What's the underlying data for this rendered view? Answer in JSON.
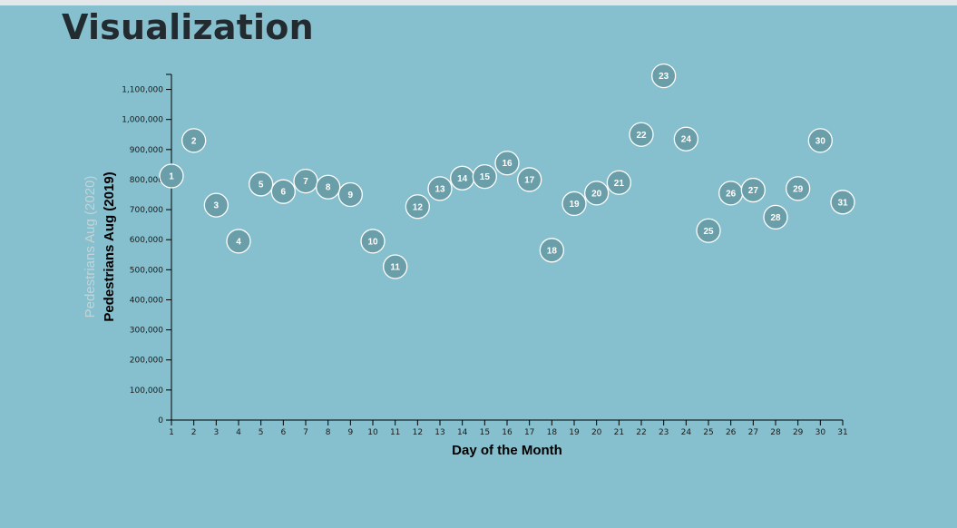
{
  "page": {
    "title": "Visualization"
  },
  "chart_data": {
    "type": "scatter",
    "xlabel": "Day of the Month",
    "ylabel": "Pedestrians Aug (2019)",
    "ylabel_alt": "Pedestrians Aug (2020)",
    "xlim": [
      1,
      31
    ],
    "ylim": [
      0,
      1150000
    ],
    "x_ticks": [
      "1",
      "2",
      "3",
      "4",
      "5",
      "6",
      "7",
      "8",
      "9",
      "10",
      "11",
      "12",
      "13",
      "14",
      "15",
      "16",
      "17",
      "18",
      "19",
      "20",
      "21",
      "22",
      "23",
      "24",
      "25",
      "26",
      "27",
      "28",
      "29",
      "30",
      "31"
    ],
    "y_ticks": [
      "0",
      "100,000",
      "200,000",
      "300,000",
      "400,000",
      "500,000",
      "600,000",
      "700,000",
      "800,000",
      "900,000",
      "1,000,000",
      "1,100,000"
    ],
    "y_tick_values": [
      0,
      100000,
      200000,
      300000,
      400000,
      500000,
      600000,
      700000,
      800000,
      900000,
      1000000,
      1100000
    ],
    "grid": false,
    "colors": {
      "point_fill": "#6a9ea8",
      "point_stroke": "#ffffff",
      "axis": "#000000",
      "alt_label": "#c3d4d9"
    },
    "series": [
      {
        "x": [
          1,
          2,
          3,
          4,
          5,
          6,
          7,
          8,
          9,
          10,
          11,
          12,
          13,
          14,
          15,
          16,
          17,
          18,
          19,
          20,
          21,
          22,
          23,
          24,
          25,
          26,
          27,
          28,
          29,
          30,
          31
        ],
        "labels": [
          "1",
          "2",
          "3",
          "4",
          "5",
          "6",
          "7",
          "8",
          "9",
          "10",
          "11",
          "12",
          "13",
          "14",
          "15",
          "16",
          "17",
          "18",
          "19",
          "20",
          "21",
          "22",
          "23",
          "24",
          "25",
          "26",
          "27",
          "28",
          "29",
          "30",
          "31"
        ],
        "values": [
          812000,
          930000,
          715000,
          595000,
          785000,
          760000,
          795000,
          775000,
          750000,
          595000,
          510000,
          710000,
          770000,
          805000,
          810000,
          855000,
          800000,
          565000,
          720000,
          755000,
          790000,
          950000,
          1145000,
          935000,
          630000,
          755000,
          765000,
          675000,
          770000,
          930000,
          725000
        ]
      }
    ]
  }
}
